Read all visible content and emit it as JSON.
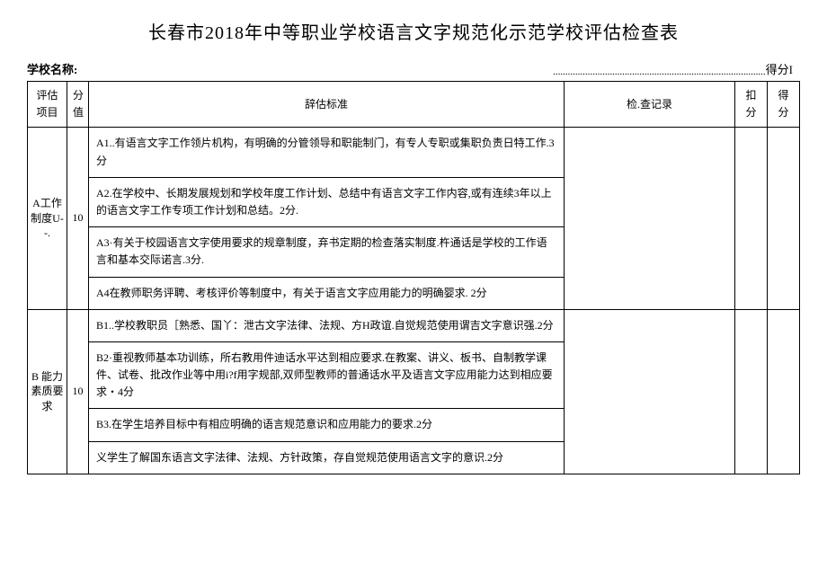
{
  "title": "长春市2018年中等职业学校语言文字规范化示范学校评估检查表",
  "meta": {
    "school_label": "学校名称:",
    "dots": "......................................................................................",
    "score_label": "得分I"
  },
  "headers": {
    "project": "评估项目",
    "value": "分值",
    "standard": "辞估标准",
    "record": "检.查记录",
    "deduct": "扣分",
    "score": "得分"
  },
  "sections": [
    {
      "project": "A工作制度U--.",
      "value": "10",
      "rows": [
        "A1..有语言文字工作领片机构，有明确的分管领导和职能制门，有专人专职或集职负责日特工作.3分",
        "A2.在学校中、长期发展规划和学校年度工作计划、总结中有语言文字工作内容,或有连续3年以上的语言文字工作专项工作计划和总结。2分.",
        "A3·有关于校园语言文字使用要求的规章制度，弃书定期的检查落实制度.杵通话是学校的工作语言和基本交际诺言.3分.",
        "A4在教师职务评聘、考核评价等制度中，有关于语言文字应用能力的明确婴求.\n2分"
      ]
    },
    {
      "project": "B\n能力素质要求",
      "value": "10",
      "rows": [
        "B1..学校教职员［熟悉、国丫：泄古文字法律、法规、方H政谊.自觉规范使用谓吉文字意识强.2分",
        "B2·重视教师基本功训练，所右教用件迪话水平达到相应要求.在教案、讲义、板书、自制教学课件、试卷、批改作业等中用i?f用字规部,双师型教师的普通话水平及语言文字应用能力达到相应要求・4分",
        "B3.在学生培养目标中有相应明确的语言规范意识和应用能力的要求.2分",
        "义学生了解国东语言文字法律、法规、方针政策，存自觉规范使用语言文字的意识.2分"
      ]
    }
  ]
}
